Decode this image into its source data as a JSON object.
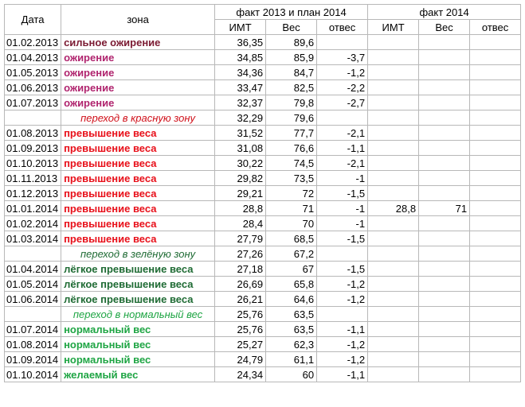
{
  "headers": {
    "date": "Дата",
    "zone": "зона",
    "group1": "факт 2013 и план 2014",
    "group2": "факт 2014",
    "imt": "ИМТ",
    "weight": "Вес",
    "loss": "отвес"
  },
  "colors": {
    "severe": "#7b1a32",
    "obese": "#b0246e",
    "overweight": "#e8101a",
    "light": "#1f6b34",
    "normal": "#1fa544"
  },
  "rows": [
    {
      "date": "01.02.2013",
      "zone": "сильное ожирение",
      "cls": "z-severe",
      "imt": "36,35",
      "weight": "89,6",
      "loss": "",
      "imt2": "",
      "weight2": "",
      "loss2": ""
    },
    {
      "date": "01.04.2013",
      "zone": "ожирение",
      "cls": "z-obese",
      "imt": "34,85",
      "weight": "85,9",
      "loss": "-3,7",
      "imt2": "",
      "weight2": "",
      "loss2": ""
    },
    {
      "date": "01.05.2013",
      "zone": "ожирение",
      "cls": "z-obese",
      "imt": "34,36",
      "weight": "84,7",
      "loss": "-1,2",
      "imt2": "",
      "weight2": "",
      "loss2": ""
    },
    {
      "date": "01.06.2013",
      "zone": "ожирение",
      "cls": "z-obese",
      "imt": "33,47",
      "weight": "82,5",
      "loss": "-2,2",
      "imt2": "",
      "weight2": "",
      "loss2": ""
    },
    {
      "date": "01.07.2013",
      "zone": "ожирение",
      "cls": "z-obese",
      "imt": "32,37",
      "weight": "79,8",
      "loss": "-2,7",
      "imt2": "",
      "weight2": "",
      "loss2": ""
    },
    {
      "date": "",
      "zone": "переход в красную зону",
      "cls": "trans t-red",
      "imt": "32,29",
      "weight": "79,6",
      "loss": "",
      "imt2": "",
      "weight2": "",
      "loss2": ""
    },
    {
      "date": "01.08.2013",
      "zone": "превышение веса",
      "cls": "z-over",
      "imt": "31,52",
      "weight": "77,7",
      "loss": "-2,1",
      "imt2": "",
      "weight2": "",
      "loss2": ""
    },
    {
      "date": "01.09.2013",
      "zone": "превышение веса",
      "cls": "z-over",
      "imt": "31,08",
      "weight": "76,6",
      "loss": "-1,1",
      "imt2": "",
      "weight2": "",
      "loss2": ""
    },
    {
      "date": "01.10.2013",
      "zone": "превышение веса",
      "cls": "z-over",
      "imt": "30,22",
      "weight": "74,5",
      "loss": "-2,1",
      "imt2": "",
      "weight2": "",
      "loss2": ""
    },
    {
      "date": "01.11.2013",
      "zone": "превышение веса",
      "cls": "z-over",
      "imt": "29,82",
      "weight": "73,5",
      "loss": "-1",
      "imt2": "",
      "weight2": "",
      "loss2": ""
    },
    {
      "date": "01.12.2013",
      "zone": "превышение веса",
      "cls": "z-over",
      "imt": "29,21",
      "weight": "72",
      "loss": "-1,5",
      "imt2": "",
      "weight2": "",
      "loss2": ""
    },
    {
      "date": "01.01.2014",
      "zone": "превышение веса",
      "cls": "z-over",
      "imt": "28,8",
      "weight": "71",
      "loss": "-1",
      "imt2": "28,8",
      "weight2": "71",
      "loss2": ""
    },
    {
      "date": "01.02.2014",
      "zone": "превышение веса",
      "cls": "z-over",
      "imt": "28,4",
      "weight": "70",
      "loss": "-1",
      "imt2": "",
      "weight2": "",
      "loss2": ""
    },
    {
      "date": "01.03.2014",
      "zone": "превышение веса",
      "cls": "z-over",
      "imt": "27,79",
      "weight": "68,5",
      "loss": "-1,5",
      "imt2": "",
      "weight2": "",
      "loss2": ""
    },
    {
      "date": "",
      "zone": "переход в зелёную зону",
      "cls": "trans t-green",
      "imt": "27,26",
      "weight": "67,2",
      "loss": "",
      "imt2": "",
      "weight2": "",
      "loss2": ""
    },
    {
      "date": "01.04.2014",
      "zone": "лёгкое превышение веса",
      "cls": "z-light",
      "imt": "27,18",
      "weight": "67",
      "loss": "-1,5",
      "imt2": "",
      "weight2": "",
      "loss2": ""
    },
    {
      "date": "01.05.2014",
      "zone": "лёгкое превышение веса",
      "cls": "z-light",
      "imt": "26,69",
      "weight": "65,8",
      "loss": "-1,2",
      "imt2": "",
      "weight2": "",
      "loss2": ""
    },
    {
      "date": "01.06.2014",
      "zone": "лёгкое превышение веса",
      "cls": "z-light",
      "imt": "26,21",
      "weight": "64,6",
      "loss": "-1,2",
      "imt2": "",
      "weight2": "",
      "loss2": ""
    },
    {
      "date": "",
      "zone": "переход в нормальный вес",
      "cls": "trans t-norm",
      "imt": "25,76",
      "weight": "63,5",
      "loss": "",
      "imt2": "",
      "weight2": "",
      "loss2": ""
    },
    {
      "date": "01.07.2014",
      "zone": "нормальный вес",
      "cls": "z-norm",
      "imt": "25,76",
      "weight": "63,5",
      "loss": "-1,1",
      "imt2": "",
      "weight2": "",
      "loss2": ""
    },
    {
      "date": "01.08.2014",
      "zone": "нормальный вес",
      "cls": "z-norm",
      "imt": "25,27",
      "weight": "62,3",
      "loss": "-1,2",
      "imt2": "",
      "weight2": "",
      "loss2": ""
    },
    {
      "date": "01.09.2014",
      "zone": "нормальный вес",
      "cls": "z-norm",
      "imt": "24,79",
      "weight": "61,1",
      "loss": "-1,2",
      "imt2": "",
      "weight2": "",
      "loss2": ""
    },
    {
      "date": "01.10.2014",
      "zone": "желаемый вес",
      "cls": "z-norm",
      "imt": "24,34",
      "weight": "60",
      "loss": "-1,1",
      "imt2": "",
      "weight2": "",
      "loss2": ""
    }
  ]
}
